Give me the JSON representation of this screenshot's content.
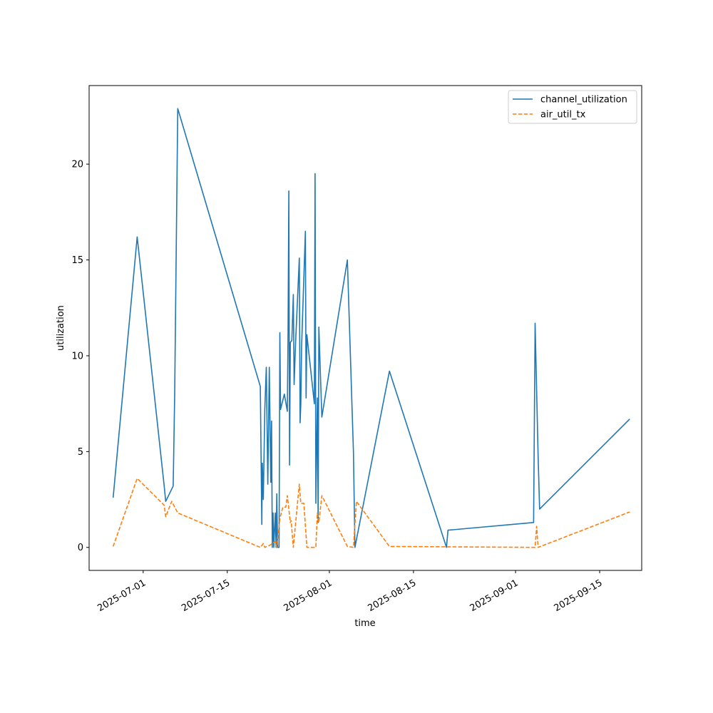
{
  "chart_data": {
    "type": "line",
    "title": "",
    "xlabel": "time",
    "ylabel": "utilization",
    "x_type": "date",
    "xlim": [
      "2025-06-22",
      "2025-09-22"
    ],
    "ylim": [
      -1.2,
      24.1
    ],
    "x_ticks": [
      "2025-07-01",
      "2025-07-15",
      "2025-08-01",
      "2025-08-15",
      "2025-09-01",
      "2025-09-15"
    ],
    "y_ticks": [
      0,
      5,
      10,
      15,
      20
    ],
    "legend_position": "top-right",
    "grid": false,
    "series": [
      {
        "name": "channel_utilization",
        "color": "#1f77b4",
        "style": "solid",
        "points": [
          [
            "2025-06-26",
            2.6
          ],
          [
            "2025-06-30",
            16.2
          ],
          [
            "2025-07-04T12:00",
            3.2
          ],
          [
            "2025-07-04T18:00",
            2.4
          ],
          [
            "2025-07-06",
            3.2
          ],
          [
            "2025-07-06T06:00",
            8.0
          ],
          [
            "2025-07-06T18:00",
            22.9
          ],
          [
            "2025-07-20T12:00",
            8.4
          ],
          [
            "2025-07-20T18:00",
            1.2
          ],
          [
            "2025-07-20T20:00",
            4.4
          ],
          [
            "2025-07-21",
            2.5
          ],
          [
            "2025-07-21T06:00",
            7.2
          ],
          [
            "2025-07-21T12:00",
            9.4
          ],
          [
            "2025-07-21T18:00",
            3.3
          ],
          [
            "2025-07-22",
            9.4
          ],
          [
            "2025-07-22T06:00",
            3.4
          ],
          [
            "2025-07-22T09:00",
            6.6
          ],
          [
            "2025-07-22T12:00",
            0.0
          ],
          [
            "2025-07-22T15:00",
            1.8
          ],
          [
            "2025-07-22T18:00",
            0.0
          ],
          [
            "2025-07-23",
            1.8
          ],
          [
            "2025-07-23T03:00",
            0.0
          ],
          [
            "2025-07-23T06:00",
            2.8
          ],
          [
            "2025-07-23T09:00",
            0.0
          ],
          [
            "2025-07-23T15:00",
            0.0
          ],
          [
            "2025-07-23T18:00",
            11.2
          ],
          [
            "2025-07-23T21:00",
            7.2
          ],
          [
            "2025-07-24T12:00",
            8.0
          ],
          [
            "2025-07-25",
            7.1
          ],
          [
            "2025-07-25T03:00",
            11.2
          ],
          [
            "2025-07-25T06:00",
            18.6
          ],
          [
            "2025-07-25T09:00",
            4.3
          ],
          [
            "2025-07-25T12:00",
            10.7
          ],
          [
            "2025-07-25T18:00",
            10.8
          ],
          [
            "2025-07-26",
            13.2
          ],
          [
            "2025-07-26T03:00",
            8.5
          ],
          [
            "2025-07-26T09:00",
            10.7
          ],
          [
            "2025-07-27",
            15.1
          ],
          [
            "2025-07-27T03:00",
            6.5
          ],
          [
            "2025-07-27T06:00",
            7.5
          ],
          [
            "2025-07-27T09:00",
            10.5
          ],
          [
            "2025-07-28",
            16.5
          ],
          [
            "2025-07-28T03:00",
            7.8
          ],
          [
            "2025-07-28T06:00",
            11.1
          ],
          [
            "2025-07-29T12:00",
            7.5
          ],
          [
            "2025-07-29T15:00",
            19.5
          ],
          [
            "2025-07-29T18:00",
            2.3
          ],
          [
            "2025-07-30",
            7.8
          ],
          [
            "2025-07-30T03:00",
            1.3
          ],
          [
            "2025-07-30T06:00",
            11.5
          ],
          [
            "2025-07-30T18:00",
            6.8
          ],
          [
            "2025-08-04",
            15.0
          ],
          [
            "2025-08-05",
            5.0
          ],
          [
            "2025-08-05T06:00",
            0.0
          ],
          [
            "2025-08-11",
            9.2
          ],
          [
            "2025-08-20T12:00",
            0.0
          ],
          [
            "2025-08-20T18:00",
            0.9
          ],
          [
            "2025-09-04",
            1.3
          ],
          [
            "2025-09-04T06:00",
            11.7
          ],
          [
            "2025-09-04T18:00",
            4.8
          ],
          [
            "2025-09-05",
            2.0
          ],
          [
            "2025-09-20",
            6.7
          ]
        ]
      },
      {
        "name": "air_util_tx",
        "color": "#ff7f0e",
        "style": "dashed",
        "points": [
          [
            "2025-06-26",
            0.05
          ],
          [
            "2025-06-30",
            3.6
          ],
          [
            "2025-07-04T12:00",
            2.2
          ],
          [
            "2025-07-04T18:00",
            1.6
          ],
          [
            "2025-07-05T18:00",
            2.4
          ],
          [
            "2025-07-06T18:00",
            1.8
          ],
          [
            "2025-07-20T12:00",
            0.0
          ],
          [
            "2025-07-21",
            0.2
          ],
          [
            "2025-07-21T06:00",
            0.0
          ],
          [
            "2025-07-22",
            0.1
          ],
          [
            "2025-07-22T12:00",
            0.2
          ],
          [
            "2025-07-23",
            0.3
          ],
          [
            "2025-07-23T06:00",
            0.0
          ],
          [
            "2025-07-23T18:00",
            1.5
          ],
          [
            "2025-07-24T06:00",
            2.1
          ],
          [
            "2025-07-24T18:00",
            2.1
          ],
          [
            "2025-07-25",
            2.7
          ],
          [
            "2025-07-25T12:00",
            1.3
          ],
          [
            "2025-07-25T15:00",
            1.4
          ],
          [
            "2025-07-26",
            0.0
          ],
          [
            "2025-07-26T18:00",
            2.5
          ],
          [
            "2025-07-27",
            3.3
          ],
          [
            "2025-07-27T06:00",
            2.3
          ],
          [
            "2025-07-27T18:00",
            2.3
          ],
          [
            "2025-07-28T06:00",
            0.0
          ],
          [
            "2025-07-29T18:00",
            0.0
          ],
          [
            "2025-07-30",
            1.8
          ],
          [
            "2025-07-30T06:00",
            1.3
          ],
          [
            "2025-07-30T18:00",
            2.7
          ],
          [
            "2025-08-04",
            0.05
          ],
          [
            "2025-08-05",
            0.0
          ],
          [
            "2025-08-05T12:00",
            2.4
          ],
          [
            "2025-08-11",
            0.05
          ],
          [
            "2025-09-04",
            0.0
          ],
          [
            "2025-09-04T06:00",
            0.0
          ],
          [
            "2025-09-04T12:00",
            1.1
          ],
          [
            "2025-09-04T18:00",
            0.0
          ],
          [
            "2025-09-20",
            1.85
          ]
        ]
      }
    ]
  }
}
